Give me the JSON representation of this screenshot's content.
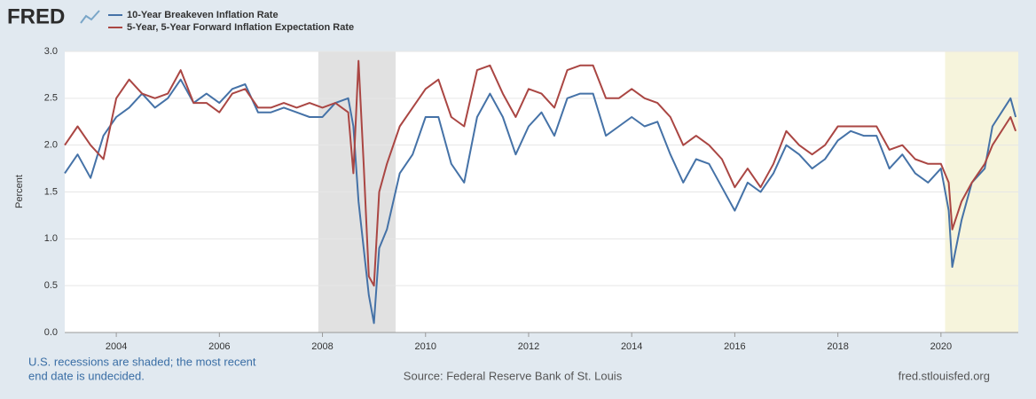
{
  "chart_data": {
    "type": "line",
    "logo": "FRED",
    "ylabel": "Percent",
    "note": [
      "U.S. recessions are shaded; the most recent",
      "end date is undecided."
    ],
    "source": "Source: Federal Reserve Bank of St. Louis",
    "site": "fred.stlouisfed.org",
    "x": [
      2003,
      2003.25,
      2003.5,
      2003.75,
      2004,
      2004.25,
      2004.5,
      2004.75,
      2005,
      2005.25,
      2005.5,
      2005.75,
      2006,
      2006.25,
      2006.5,
      2006.75,
      2007,
      2007.25,
      2007.5,
      2007.75,
      2008,
      2008.25,
      2008.5,
      2008.6,
      2008.7,
      2008.8,
      2008.9,
      2009,
      2009.1,
      2009.25,
      2009.5,
      2009.75,
      2010,
      2010.25,
      2010.5,
      2010.75,
      2011,
      2011.25,
      2011.5,
      2011.75,
      2012,
      2012.25,
      2012.5,
      2012.75,
      2013,
      2013.25,
      2013.5,
      2013.75,
      2014,
      2014.25,
      2014.5,
      2014.75,
      2015,
      2015.25,
      2015.5,
      2015.75,
      2016,
      2016.25,
      2016.5,
      2016.75,
      2017,
      2017.25,
      2017.5,
      2017.75,
      2018,
      2018.25,
      2018.5,
      2018.75,
      2019,
      2019.25,
      2019.5,
      2019.75,
      2020,
      2020.15,
      2020.22,
      2020.4,
      2020.6,
      2020.85,
      2021,
      2021.35,
      2021.45
    ],
    "series": [
      {
        "name": "10-Year Breakeven Inflation Rate",
        "color": "#4572a7",
        "values": [
          1.7,
          1.9,
          1.65,
          2.1,
          2.3,
          2.4,
          2.55,
          2.4,
          2.5,
          2.7,
          2.45,
          2.55,
          2.45,
          2.6,
          2.65,
          2.35,
          2.35,
          2.4,
          2.35,
          2.3,
          2.3,
          2.45,
          2.5,
          2.2,
          1.4,
          0.9,
          0.4,
          0.1,
          0.9,
          1.1,
          1.7,
          1.9,
          2.3,
          2.3,
          1.8,
          1.6,
          2.3,
          2.55,
          2.3,
          1.9,
          2.2,
          2.35,
          2.1,
          2.5,
          2.55,
          2.55,
          2.1,
          2.2,
          2.3,
          2.2,
          2.25,
          1.9,
          1.6,
          1.85,
          1.8,
          1.55,
          1.3,
          1.6,
          1.5,
          1.7,
          2.0,
          1.9,
          1.75,
          1.85,
          2.05,
          2.15,
          2.1,
          2.1,
          1.75,
          1.9,
          1.7,
          1.6,
          1.75,
          1.3,
          0.7,
          1.2,
          1.6,
          1.75,
          2.2,
          2.5,
          2.3
        ]
      },
      {
        "name": "5-Year, 5-Year Forward Inflation Expectation Rate",
        "color": "#aa4643",
        "values": [
          2.0,
          2.2,
          2.0,
          1.85,
          2.5,
          2.7,
          2.55,
          2.5,
          2.55,
          2.8,
          2.45,
          2.45,
          2.35,
          2.55,
          2.6,
          2.4,
          2.4,
          2.45,
          2.4,
          2.45,
          2.4,
          2.45,
          2.35,
          1.7,
          2.9,
          1.8,
          0.6,
          0.5,
          1.5,
          1.8,
          2.2,
          2.4,
          2.6,
          2.7,
          2.3,
          2.2,
          2.8,
          2.85,
          2.55,
          2.3,
          2.6,
          2.55,
          2.4,
          2.8,
          2.85,
          2.85,
          2.5,
          2.5,
          2.6,
          2.5,
          2.45,
          2.3,
          2.0,
          2.1,
          2.0,
          1.85,
          1.55,
          1.75,
          1.55,
          1.8,
          2.15,
          2.0,
          1.9,
          2.0,
          2.2,
          2.2,
          2.2,
          2.2,
          1.95,
          2.0,
          1.85,
          1.8,
          1.8,
          1.6,
          1.1,
          1.4,
          1.6,
          1.8,
          2.0,
          2.3,
          2.15
        ]
      }
    ],
    "recessions": [
      {
        "start": 2007.92,
        "end": 2009.42,
        "color": "#e1e1e1"
      },
      {
        "start": 2020.08,
        "end": null,
        "color": "#f6f4dc"
      }
    ],
    "xlim": [
      2003,
      2021.5
    ],
    "xticks": [
      2004,
      2006,
      2008,
      2010,
      2012,
      2014,
      2016,
      2018,
      2020
    ],
    "ylim": [
      0,
      3
    ],
    "yticks": [
      {
        "value": 0,
        "label": "0.0"
      },
      {
        "value": 0.5,
        "label": "0.5"
      },
      {
        "value": 1,
        "label": "1.0"
      },
      {
        "value": 1.5,
        "label": "1.5"
      },
      {
        "value": 2,
        "label": "2.0"
      },
      {
        "value": 2.5,
        "label": "2.5"
      },
      {
        "value": 3,
        "label": "3.0"
      }
    ],
    "grid": true
  }
}
